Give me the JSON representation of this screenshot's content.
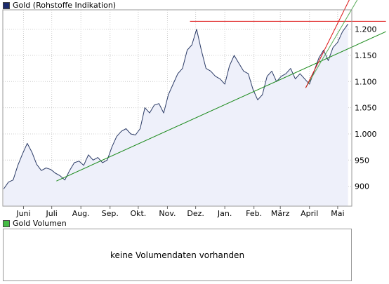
{
  "price_panel": {
    "legend": "Gold (Rohstoffe Indikation)",
    "legend_color": "#1a2a6c"
  },
  "volume_panel": {
    "legend": "Gold Volumen",
    "legend_color": "#44bb44",
    "message": "keine Volumendaten vorhanden"
  },
  "colors": {
    "price_line": "#2b3b66",
    "price_fill": "#eef0fa",
    "trend_green": "#1a8a1a",
    "trend_light_green": "#55aa55",
    "trend_red": "#dd1111",
    "grid": "#cccccc",
    "frame": "#999999"
  },
  "chart_data": {
    "type": "area",
    "title": "Gold (Rohstoffe Indikation)",
    "x_tick_labels": [
      "Juni",
      "Juli",
      "Aug.",
      "Sep.",
      "Okt.",
      "Nov.",
      "Dez.",
      "Jan.",
      "Feb.",
      "März",
      "April",
      "Mai"
    ],
    "y_tick_labels": [
      "900",
      "950",
      "1.000",
      "1.050",
      "1.100",
      "1.150",
      "1.200"
    ],
    "y_ticks": [
      900,
      950,
      1000,
      1050,
      1100,
      1150,
      1200
    ],
    "ylim": [
      862,
      1237
    ],
    "grid": true,
    "series": [
      {
        "name": "Gold (Rohstoffe Indikation)",
        "x": [
          "2009-05-11",
          "2009-05-16",
          "2009-05-21",
          "2009-05-26",
          "2009-05-31",
          "2009-06-05",
          "2009-06-10",
          "2009-06-15",
          "2009-06-20",
          "2009-06-25",
          "2009-06-30",
          "2009-07-05",
          "2009-07-10",
          "2009-07-15",
          "2009-07-20",
          "2009-07-25",
          "2009-07-30",
          "2009-08-04",
          "2009-08-09",
          "2009-08-14",
          "2009-08-19",
          "2009-08-24",
          "2009-08-29",
          "2009-09-03",
          "2009-09-08",
          "2009-09-13",
          "2009-09-18",
          "2009-09-23",
          "2009-09-28",
          "2009-10-03",
          "2009-10-08",
          "2009-10-13",
          "2009-10-18",
          "2009-10-23",
          "2009-10-28",
          "2009-11-02",
          "2009-11-07",
          "2009-11-12",
          "2009-11-17",
          "2009-11-22",
          "2009-11-27",
          "2009-12-02",
          "2009-12-07",
          "2009-12-12",
          "2009-12-17",
          "2009-12-22",
          "2009-12-27",
          "2010-01-01",
          "2010-01-06",
          "2010-01-11",
          "2010-01-16",
          "2010-01-21",
          "2010-01-26",
          "2010-01-31",
          "2010-02-05",
          "2010-02-10",
          "2010-02-15",
          "2010-02-20",
          "2010-02-25",
          "2010-03-02",
          "2010-03-07",
          "2010-03-12",
          "2010-03-17",
          "2010-03-22",
          "2010-03-27",
          "2010-04-01",
          "2010-04-06",
          "2010-04-11",
          "2010-04-16",
          "2010-04-21",
          "2010-04-26",
          "2010-05-01",
          "2010-05-06",
          "2010-05-12"
        ],
        "values": [
          895,
          908,
          912,
          940,
          962,
          982,
          965,
          942,
          930,
          935,
          932,
          925,
          920,
          912,
          930,
          945,
          948,
          940,
          960,
          950,
          955,
          945,
          950,
          975,
          995,
          1005,
          1010,
          1000,
          998,
          1010,
          1050,
          1040,
          1055,
          1058,
          1040,
          1075,
          1095,
          1115,
          1125,
          1160,
          1170,
          1200,
          1160,
          1125,
          1120,
          1110,
          1105,
          1095,
          1130,
          1150,
          1135,
          1120,
          1115,
          1085,
          1065,
          1075,
          1110,
          1120,
          1100,
          1110,
          1115,
          1125,
          1105,
          1115,
          1105,
          1095,
          1120,
          1145,
          1160,
          1140,
          1165,
          1175,
          1195,
          1210
        ]
      }
    ],
    "trendlines": [
      {
        "name": "support-green",
        "color": "#1a8a1a",
        "points": [
          [
            "2009-07-06",
            910
          ],
          [
            "2010-05-15",
            1165
          ]
        ]
      },
      {
        "name": "resistance-red-horizontal",
        "color": "#dd1111",
        "points": [
          [
            "2009-11-25",
            1215
          ],
          [
            "2010-05-15",
            1215
          ]
        ]
      },
      {
        "name": "trend-light-green",
        "color": "#55aa55",
        "points": [
          [
            "2010-03-28",
            1088
          ],
          [
            "2010-05-15",
            1235
          ]
        ]
      },
      {
        "name": "trend-red-steep",
        "color": "#dd1111",
        "points": [
          [
            "2010-03-28",
            1088
          ],
          [
            "2010-05-15",
            1262
          ]
        ]
      }
    ]
  }
}
